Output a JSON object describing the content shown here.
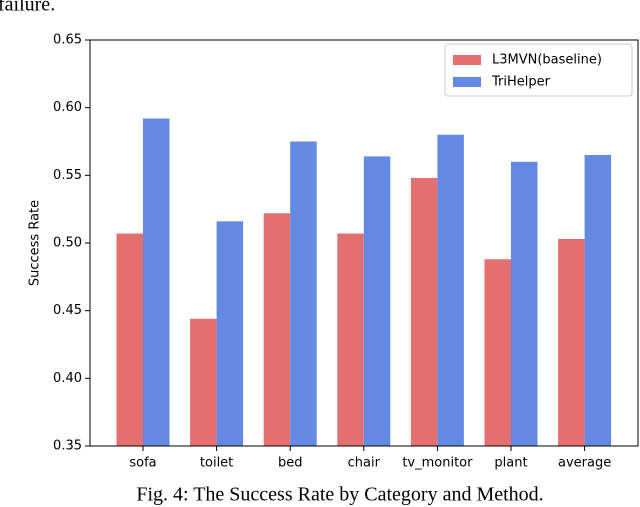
{
  "page_text": {
    "top": "failure.",
    "caption": "Fig. 4: The Success Rate by Category and Method."
  },
  "chart_data": {
    "type": "bar",
    "ylabel": "Success Rate",
    "categories": [
      "sofa",
      "toilet",
      "bed",
      "chair",
      "tv_monitor",
      "plant",
      "average"
    ],
    "series": [
      {
        "name": "L3MVN(baseline)",
        "color": "#e36f6f",
        "values": [
          0.507,
          0.444,
          0.522,
          0.507,
          0.548,
          0.488,
          0.503
        ]
      },
      {
        "name": "TriHelper",
        "color": "#6489e3",
        "values": [
          0.592,
          0.516,
          0.575,
          0.564,
          0.58,
          0.56,
          0.565
        ]
      }
    ],
    "ylim": [
      0.35,
      0.65
    ],
    "yticks": [
      0.35,
      {
        "value": 0.4,
        "label": "0.40"
      },
      0.45,
      {
        "value": 0.5,
        "label": "0.50"
      },
      0.55,
      {
        "value": 0.6,
        "label": "0.60"
      },
      0.65
    ],
    "legend": "upper-right"
  }
}
